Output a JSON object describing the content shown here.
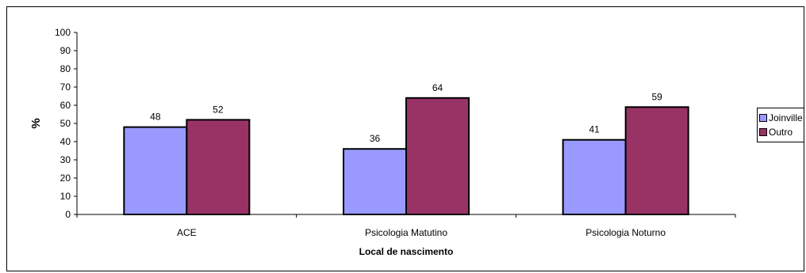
{
  "chart_data": {
    "type": "bar",
    "categories": [
      "ACE",
      "Psicologia Matutino",
      "Psicologia Noturno"
    ],
    "series": [
      {
        "name": "Joinville",
        "values": [
          48,
          36,
          41
        ],
        "color": "#9999ff"
      },
      {
        "name": "Outro",
        "values": [
          52,
          64,
          59
        ],
        "color": "#993366"
      }
    ],
    "xlabel": "Local de nascimento",
    "ylabel": "%",
    "ylim": [
      0,
      100
    ],
    "yticks": [
      0,
      10,
      20,
      30,
      40,
      50,
      60,
      70,
      80,
      90,
      100
    ],
    "grid": false,
    "legend_position": "right",
    "data_labels": true
  }
}
